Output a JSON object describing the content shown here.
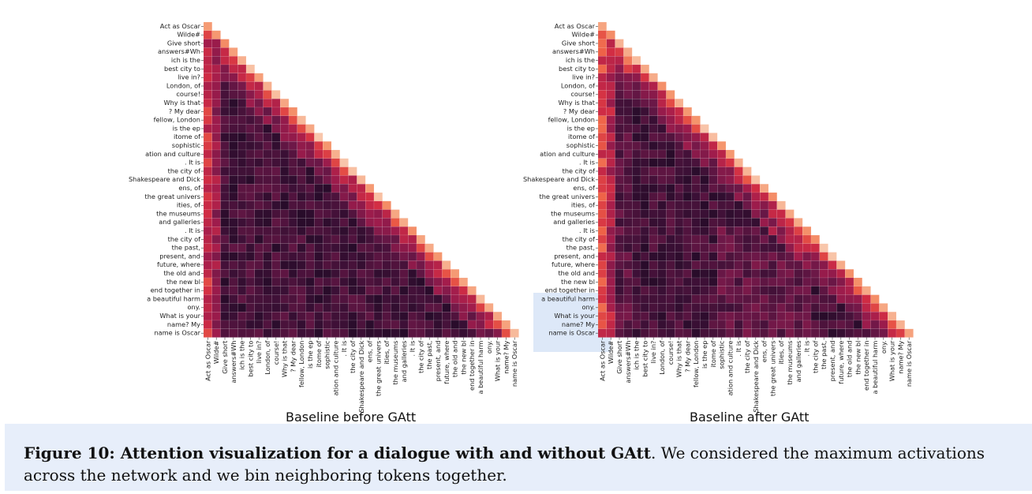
{
  "figure": {
    "tokens": [
      "Act as Oscar",
      "Wilde#",
      "Give short",
      "answers#Wh",
      "ich is the",
      "best city to",
      "live in?",
      "London, of",
      "course!",
      "Why is that",
      "? My dear",
      "fellow, London",
      "is the ep",
      "itome of",
      "sophistic",
      "ation and culture",
      ". It is",
      "the city of",
      "Shakespeare and Dick",
      "ens, of",
      "the great univers",
      "ities, of",
      "the museums",
      "and galleries",
      ". It is",
      "the city of",
      "the past,",
      "present, and",
      "future, where",
      "the old and",
      "the new bl",
      "end together in",
      "a beautiful harm",
      "ony.",
      "What is your",
      "name? My",
      "name is Oscar"
    ],
    "panels": [
      {
        "subtitle": "Baseline before GAtt"
      },
      {
        "subtitle": "Baseline after GAtt"
      }
    ],
    "caption_bold": "Figure 10: Attention visualization for a dialogue with and without GAtt",
    "caption_rest": ". We considered the maximum activations across the network and we bin neighboring tokens together."
  },
  "colors": {
    "background": "#ffffff",
    "caption_band": "#e7eefa",
    "highlight": "#b4cdf0"
  }
}
